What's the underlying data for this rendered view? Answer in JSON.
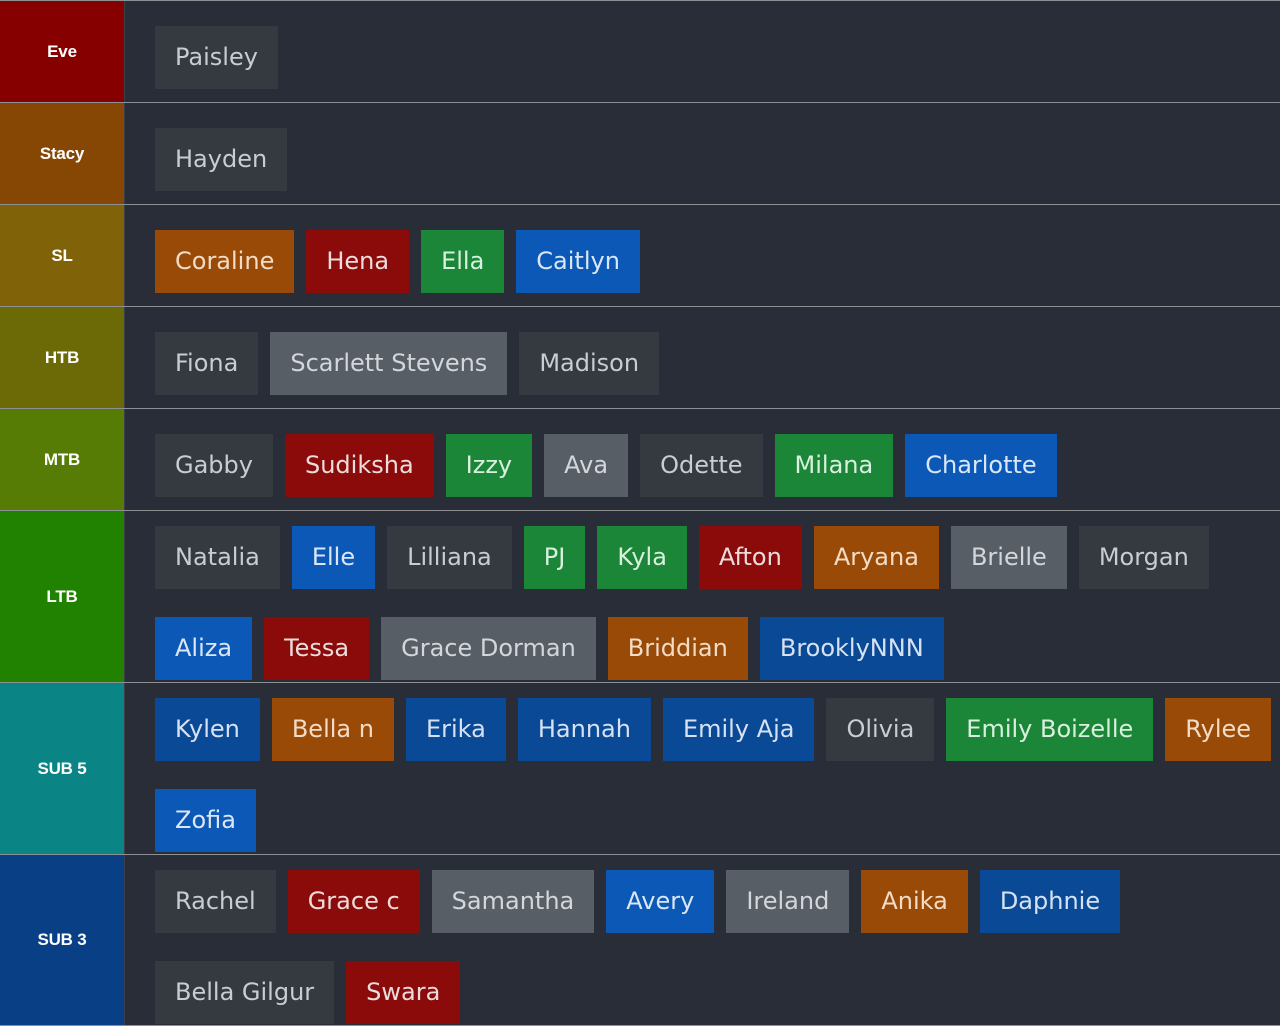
{
  "colors": {
    "page_background": "#282d38",
    "row_divider": "#8e9094",
    "chip_default": "#353a40",
    "chip_gray": "#585e66",
    "chip_red": "#8b0b0b",
    "chip_orange": "#9a4a07",
    "chip_green": "#1c8638",
    "chip_blue": "#0b58b6",
    "chip_navy": "#0a4996"
  },
  "tiers": [
    {
      "label": "Eve",
      "color": "#870000",
      "items": [
        {
          "name": "Paisley",
          "color": "default"
        }
      ]
    },
    {
      "label": "Stacy",
      "color": "#864704",
      "items": [
        {
          "name": "Hayden",
          "color": "default"
        }
      ]
    },
    {
      "label": "SL",
      "color": "#806208",
      "items": [
        {
          "name": "Coraline",
          "color": "orange"
        },
        {
          "name": "Hena",
          "color": "red"
        },
        {
          "name": "Ella",
          "color": "green"
        },
        {
          "name": "Caitlyn",
          "color": "blue"
        }
      ]
    },
    {
      "label": "HTB",
      "color": "#6c6a07",
      "items": [
        {
          "name": "Fiona",
          "color": "default"
        },
        {
          "name": "Scarlett Stevens",
          "color": "gray"
        },
        {
          "name": "Madison",
          "color": "default"
        }
      ]
    },
    {
      "label": "MTB",
      "color": "#567c06",
      "items": [
        {
          "name": "Gabby",
          "color": "default"
        },
        {
          "name": "Sudiksha",
          "color": "red"
        },
        {
          "name": "Izzy",
          "color": "green"
        },
        {
          "name": "Ava",
          "color": "gray"
        },
        {
          "name": "Odette",
          "color": "default"
        },
        {
          "name": "Milana",
          "color": "green"
        },
        {
          "name": "Charlotte",
          "color": "blue"
        }
      ]
    },
    {
      "label": "LTB",
      "color": "#218100",
      "items": [
        {
          "name": "Natalia",
          "color": "default"
        },
        {
          "name": "Elle",
          "color": "blue"
        },
        {
          "name": "Lilliana",
          "color": "default"
        },
        {
          "name": "PJ",
          "color": "green"
        },
        {
          "name": "Kyla",
          "color": "green"
        },
        {
          "name": "Afton",
          "color": "red"
        },
        {
          "name": "Aryana",
          "color": "orange"
        },
        {
          "name": "Brielle",
          "color": "gray"
        },
        {
          "name": "Morgan",
          "color": "default"
        },
        {
          "name": "Aliza",
          "color": "blue"
        },
        {
          "name": "Tessa",
          "color": "red"
        },
        {
          "name": "Grace Dorman",
          "color": "gray"
        },
        {
          "name": "Briddian",
          "color": "orange"
        },
        {
          "name": "BrooklyNNN",
          "color": "navy"
        }
      ]
    },
    {
      "label": "SUB 5",
      "color": "#0a8484",
      "items": [
        {
          "name": "Kylen",
          "color": "navy"
        },
        {
          "name": "Bella n",
          "color": "orange"
        },
        {
          "name": "Erika",
          "color": "navy"
        },
        {
          "name": "Hannah",
          "color": "navy"
        },
        {
          "name": "Emily Aja",
          "color": "navy"
        },
        {
          "name": "Olivia",
          "color": "default"
        },
        {
          "name": "Emily Boizelle",
          "color": "green"
        },
        {
          "name": "Rylee",
          "color": "orange"
        },
        {
          "name": "Zofia",
          "color": "blue"
        }
      ]
    },
    {
      "label": "SUB 3",
      "color": "#093f85",
      "items": [
        {
          "name": "Rachel",
          "color": "default"
        },
        {
          "name": "Grace c",
          "color": "red"
        },
        {
          "name": "Samantha",
          "color": "gray"
        },
        {
          "name": "Avery",
          "color": "blue"
        },
        {
          "name": "Ireland",
          "color": "gray"
        },
        {
          "name": "Anika",
          "color": "orange"
        },
        {
          "name": "Daphnie",
          "color": "navy"
        },
        {
          "name": "Bella Gilgur",
          "color": "default"
        },
        {
          "name": "Swara",
          "color": "red"
        }
      ]
    }
  ]
}
